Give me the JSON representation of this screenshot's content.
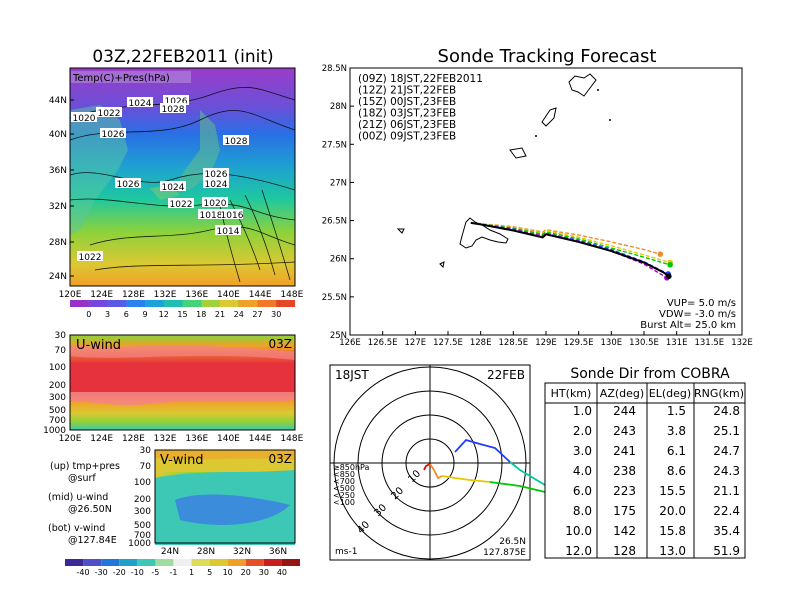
{
  "map_panel": {
    "title": "03Z,22FEB2011 (init)",
    "overlay_label": "Temp(C)+Pres(hPa)",
    "lat_labels": [
      "44N",
      "40N",
      "36N",
      "32N",
      "28N",
      "24N"
    ],
    "lon_labels": [
      "120E",
      "124E",
      "128E",
      "132E",
      "136E",
      "140E",
      "144E",
      "148E"
    ],
    "pressure_labels": [
      "1020",
      "1022",
      "1024",
      "1026",
      "1028",
      "1026",
      "1028",
      "1026",
      "1024",
      "1026",
      "1024",
      "1022",
      "1020",
      "1018",
      "1016",
      "1014",
      "1022"
    ],
    "colorbar_ticks": [
      "0",
      "3",
      "6",
      "9",
      "12",
      "15",
      "18",
      "21",
      "24",
      "27",
      "30"
    ]
  },
  "uwind_panel": {
    "title": "U-wind",
    "time": "03Z",
    "y_labels": [
      "30",
      "70",
      "100",
      "200",
      "300",
      "500",
      "700",
      "1000"
    ],
    "x_labels": [
      "120E",
      "124E",
      "128E",
      "132E",
      "136E",
      "140E",
      "144E",
      "148E"
    ]
  },
  "vwind_panel": {
    "title": "V-wind",
    "time": "03Z",
    "y_labels": [
      "30",
      "70",
      "100",
      "200",
      "300",
      "500",
      "700",
      "1000"
    ],
    "x_labels": [
      "24N",
      "28N",
      "32N",
      "36N"
    ],
    "colorbar_ticks": [
      "-40",
      "-30",
      "-20",
      "-10",
      "-5",
      "-1",
      "1",
      "5",
      "10",
      "20",
      "30",
      "40"
    ]
  },
  "notes": {
    "up": "(up) tmp+pres",
    "up_sub": "@surf",
    "mid": "(mid) u-wind",
    "mid_sub": "@26.50N",
    "bot": "(bot) v-wind",
    "bot_sub": "@127.84E"
  },
  "tracking": {
    "title": "Sonde Tracking Forecast",
    "legend": [
      {
        "label": "(09Z)  18JST,22FEB2011",
        "color": "#000000"
      },
      {
        "label": "(12Z)  21JST,22FEB",
        "color": "#a000c8"
      },
      {
        "label": "(15Z)  00JST,23FEB",
        "color": "#1e3cff"
      },
      {
        "label": "(18Z)  03JST,23FEB",
        "color": "#00c800"
      },
      {
        "label": "(21Z)  06JST,23FEB",
        "color": "#e6c800"
      },
      {
        "label": "(00Z)  09JST,23FEB",
        "color": "#f08c28"
      }
    ],
    "params": [
      "VUP=  5.0 m/s",
      "VDW=  -3.0 m/s",
      "Burst Alt=  25.0 km"
    ]
  },
  "hodograph": {
    "time_label": "18JST",
    "date_label": "22FEB",
    "ring_labels": [
      "10",
      "20",
      "30",
      "40"
    ],
    "level_legend": [
      {
        "label": "≥850hPa",
        "color": "#e60000"
      },
      {
        "label": "<850",
        "color": "#f08c28"
      },
      {
        "label": "<700",
        "color": "#e6c800"
      },
      {
        "label": "<500",
        "color": "#00c800"
      },
      {
        "label": "<250",
        "color": "#1e8cff"
      },
      {
        "label": "<100",
        "color": "#1e3cff"
      }
    ],
    "units": "ms-1",
    "loc_lat": "26.5N",
    "loc_lon": "127.875E"
  },
  "cobra_table": {
    "title": "Sonde Dir from COBRA",
    "headers": [
      "HT(km)",
      "AZ(deg)",
      "EL(deg)",
      "RNG(km)"
    ],
    "rows": [
      [
        "1.0",
        "244",
        "1.5",
        "24.8"
      ],
      [
        "2.0",
        "243",
        "3.8",
        "25.1"
      ],
      [
        "3.0",
        "241",
        "6.1",
        "24.7"
      ],
      [
        "4.0",
        "238",
        "8.6",
        "24.3"
      ],
      [
        "6.0",
        "223",
        "15.5",
        "21.1"
      ],
      [
        "8.0",
        "175",
        "20.0",
        "22.4"
      ],
      [
        "10.0",
        "142",
        "15.8",
        "35.4"
      ],
      [
        "12.0",
        "128",
        "13.0",
        "51.9"
      ]
    ]
  },
  "chart_data": {
    "type": "line",
    "title": "Sonde Tracking Forecast",
    "xlabel": "",
    "ylabel": "",
    "xlim": [
      126,
      132
    ],
    "ylim": [
      25,
      28.5
    ],
    "x_ticks": [
      "126E",
      "126.5E",
      "127E",
      "127.5E",
      "128E",
      "128.5E",
      "129E",
      "129.5E",
      "130E",
      "130.5E",
      "131E",
      "131.5E",
      "132E"
    ],
    "y_ticks": [
      "25N",
      "25.5N",
      "26N",
      "26.5N",
      "27N",
      "27.5N",
      "28N",
      "28.5N"
    ],
    "series": [
      {
        "name": "(09Z)  18JST,22FEB2011",
        "color": "#000000",
        "style": "solid",
        "x": [
          127.85,
          128.0,
          128.5,
          128.95,
          129.0,
          129.5,
          130.0,
          130.5,
          130.8,
          130.88
        ],
        "y": [
          26.47,
          26.45,
          26.37,
          26.28,
          26.32,
          26.22,
          26.1,
          25.95,
          25.82,
          25.77
        ]
      },
      {
        "name": "(12Z)  21JST,22FEB",
        "color": "#a000c8",
        "style": "dashed",
        "x": [
          127.85,
          128.5,
          128.95,
          129.0,
          129.5,
          130.0,
          130.5,
          130.85
        ],
        "y": [
          26.47,
          26.38,
          26.3,
          26.33,
          26.23,
          26.1,
          25.93,
          25.75
        ]
      },
      {
        "name": "(15Z)  00JST,23FEB",
        "color": "#1e3cff",
        "style": "dashed",
        "x": [
          127.85,
          128.5,
          128.95,
          129.0,
          129.5,
          130.0,
          130.5,
          130.87
        ],
        "y": [
          26.47,
          26.39,
          26.29,
          26.33,
          26.24,
          26.12,
          25.96,
          25.8
        ]
      },
      {
        "name": "(18Z)  03JST,23FEB",
        "color": "#00c800",
        "style": "dashed",
        "x": [
          127.85,
          128.5,
          128.95,
          129.0,
          129.5,
          130.0,
          130.5,
          130.9
        ],
        "y": [
          26.47,
          26.4,
          26.32,
          26.35,
          26.26,
          26.14,
          26.02,
          25.92
        ]
      },
      {
        "name": "(21Z)  06JST,23FEB",
        "color": "#e6c800",
        "style": "dashed",
        "x": [
          127.85,
          128.5,
          128.95,
          129.0,
          129.5,
          130.0,
          130.5,
          130.9
        ],
        "y": [
          26.47,
          26.41,
          26.33,
          26.37,
          26.28,
          26.17,
          26.05,
          25.95
        ]
      },
      {
        "name": "(00Z)  09JST,23FEB",
        "color": "#f08c28",
        "style": "dashed",
        "x": [
          127.85,
          128.5,
          128.95,
          129.0,
          129.5,
          130.0,
          130.5,
          130.75
        ],
        "y": [
          26.47,
          26.42,
          26.35,
          26.38,
          26.31,
          26.22,
          26.12,
          26.06
        ]
      }
    ]
  }
}
